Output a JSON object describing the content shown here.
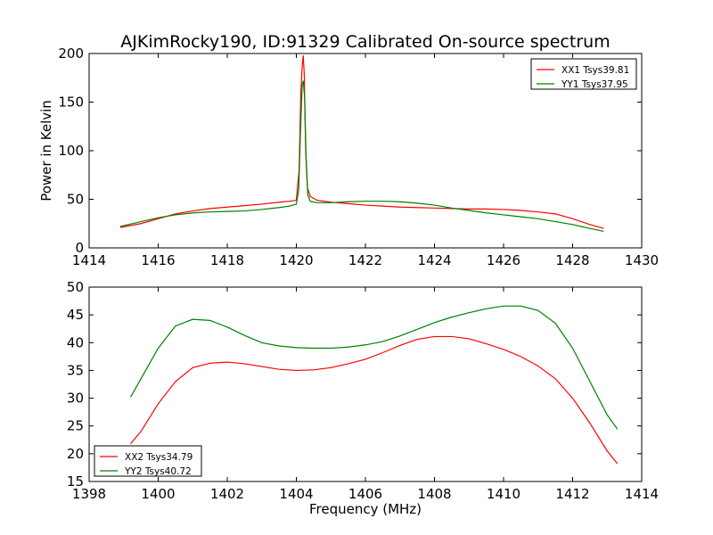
{
  "chart_data": [
    {
      "type": "line",
      "title": "AJKimRocky190, ID:91329 Calibrated On-source spectrum",
      "xlabel": "",
      "ylabel": "Power in Kelvin",
      "xlim": [
        1414,
        1430
      ],
      "ylim": [
        0,
        200
      ],
      "xticks": [
        1414,
        1416,
        1418,
        1420,
        1422,
        1424,
        1426,
        1428,
        1430
      ],
      "yticks": [
        0,
        50,
        100,
        150,
        200
      ],
      "grid": false,
      "legend": "top-right",
      "series": [
        {
          "name": "XX1 Tsys39.81",
          "color": "#ff0000",
          "points": [
            [
              1414.9,
              21
            ],
            [
              1415.5,
              25
            ],
            [
              1416,
              30
            ],
            [
              1416.5,
              35
            ],
            [
              1417,
              38
            ],
            [
              1417.5,
              40.5
            ],
            [
              1418,
              42
            ],
            [
              1418.5,
              43.5
            ],
            [
              1419,
              45
            ],
            [
              1419.5,
              47
            ],
            [
              1419.8,
              48
            ],
            [
              1420.0,
              49
            ],
            [
              1420.08,
              80
            ],
            [
              1420.13,
              160
            ],
            [
              1420.17,
              187
            ],
            [
              1420.2,
              198
            ],
            [
              1420.23,
              178
            ],
            [
              1420.27,
              100
            ],
            [
              1420.32,
              62
            ],
            [
              1420.4,
              53
            ],
            [
              1420.6,
              49
            ],
            [
              1421,
              47
            ],
            [
              1421.5,
              45.5
            ],
            [
              1422,
              44
            ],
            [
              1422.5,
              43
            ],
            [
              1423,
              42
            ],
            [
              1423.5,
              41.5
            ],
            [
              1424,
              41
            ],
            [
              1424.5,
              40.5
            ],
            [
              1425,
              40
            ],
            [
              1425.5,
              40
            ],
            [
              1426,
              39.5
            ],
            [
              1426.5,
              38.5
            ],
            [
              1427,
              37
            ],
            [
              1427.5,
              35
            ],
            [
              1428,
              30
            ],
            [
              1428.5,
              24
            ],
            [
              1428.9,
              20
            ]
          ]
        },
        {
          "name": "YY1 Tsys37.95",
          "color": "#008000",
          "points": [
            [
              1414.9,
              22
            ],
            [
              1415.5,
              27
            ],
            [
              1416,
              31
            ],
            [
              1416.5,
              34
            ],
            [
              1417,
              36
            ],
            [
              1417.5,
              37
            ],
            [
              1418,
              37.5
            ],
            [
              1418.5,
              38
            ],
            [
              1419,
              39.5
            ],
            [
              1419.5,
              41.5
            ],
            [
              1419.8,
              43
            ],
            [
              1420.0,
              45
            ],
            [
              1420.07,
              60
            ],
            [
              1420.12,
              120
            ],
            [
              1420.17,
              168
            ],
            [
              1420.2,
              172
            ],
            [
              1420.24,
              155
            ],
            [
              1420.28,
              95
            ],
            [
              1420.33,
              55
            ],
            [
              1420.4,
              48
            ],
            [
              1420.6,
              46.5
            ],
            [
              1421,
              46.5
            ],
            [
              1421.5,
              47.5
            ],
            [
              1422,
              48
            ],
            [
              1422.5,
              48
            ],
            [
              1423,
              47.5
            ],
            [
              1423.5,
              46
            ],
            [
              1424,
              44
            ],
            [
              1424.5,
              41
            ],
            [
              1425,
              38.5
            ],
            [
              1425.5,
              36
            ],
            [
              1426,
              34
            ],
            [
              1426.5,
              32
            ],
            [
              1427,
              30
            ],
            [
              1427.5,
              27
            ],
            [
              1428,
              24
            ],
            [
              1428.5,
              20
            ],
            [
              1428.9,
              17
            ]
          ]
        }
      ]
    },
    {
      "type": "line",
      "title": "",
      "xlabel": "Frequency (MHz)",
      "ylabel": "",
      "xlim": [
        1398,
        1414
      ],
      "ylim": [
        15,
        50
      ],
      "xticks": [
        1398,
        1400,
        1402,
        1404,
        1406,
        1408,
        1410,
        1412,
        1414
      ],
      "yticks": [
        15,
        20,
        25,
        30,
        35,
        40,
        45,
        50
      ],
      "grid": false,
      "legend": "bottom-left",
      "series": [
        {
          "name": "XX2 Tsys34.79",
          "color": "#ff0000",
          "points": [
            [
              1399.2,
              21.8
            ],
            [
              1399.5,
              24
            ],
            [
              1400,
              29
            ],
            [
              1400.5,
              33
            ],
            [
              1401,
              35.5
            ],
            [
              1401.5,
              36.3
            ],
            [
              1402,
              36.5
            ],
            [
              1402.5,
              36.2
            ],
            [
              1403,
              35.7
            ],
            [
              1403.5,
              35.2
            ],
            [
              1404,
              35
            ],
            [
              1404.5,
              35.1
            ],
            [
              1405,
              35.5
            ],
            [
              1405.5,
              36.2
            ],
            [
              1406,
              37
            ],
            [
              1406.5,
              38.2
            ],
            [
              1407,
              39.5
            ],
            [
              1407.5,
              40.6
            ],
            [
              1408,
              41.1
            ],
            [
              1408.5,
              41.1
            ],
            [
              1409,
              40.7
            ],
            [
              1409.5,
              39.8
            ],
            [
              1410,
              38.8
            ],
            [
              1410.5,
              37.5
            ],
            [
              1411,
              35.8
            ],
            [
              1411.5,
              33.5
            ],
            [
              1412,
              30
            ],
            [
              1412.5,
              25.5
            ],
            [
              1413,
              20.5
            ],
            [
              1413.3,
              18.2
            ]
          ]
        },
        {
          "name": "YY2 Tsys40.72",
          "color": "#008000",
          "points": [
            [
              1399.2,
              30.2
            ],
            [
              1399.5,
              33.5
            ],
            [
              1400,
              39
            ],
            [
              1400.5,
              43
            ],
            [
              1401,
              44.2
            ],
            [
              1401.5,
              44
            ],
            [
              1402,
              42.8
            ],
            [
              1402.5,
              41.3
            ],
            [
              1403,
              40
            ],
            [
              1403.5,
              39.4
            ],
            [
              1404,
              39.1
            ],
            [
              1404.5,
              39
            ],
            [
              1405,
              39
            ],
            [
              1405.5,
              39.2
            ],
            [
              1406,
              39.6
            ],
            [
              1406.5,
              40.2
            ],
            [
              1407,
              41.2
            ],
            [
              1407.5,
              42.4
            ],
            [
              1408,
              43.6
            ],
            [
              1408.5,
              44.6
            ],
            [
              1409,
              45.4
            ],
            [
              1409.5,
              46.1
            ],
            [
              1410,
              46.6
            ],
            [
              1410.5,
              46.6
            ],
            [
              1411,
              45.8
            ],
            [
              1411.5,
              43.5
            ],
            [
              1412,
              39
            ],
            [
              1412.5,
              33
            ],
            [
              1413,
              27
            ],
            [
              1413.3,
              24.4
            ]
          ]
        }
      ]
    }
  ]
}
